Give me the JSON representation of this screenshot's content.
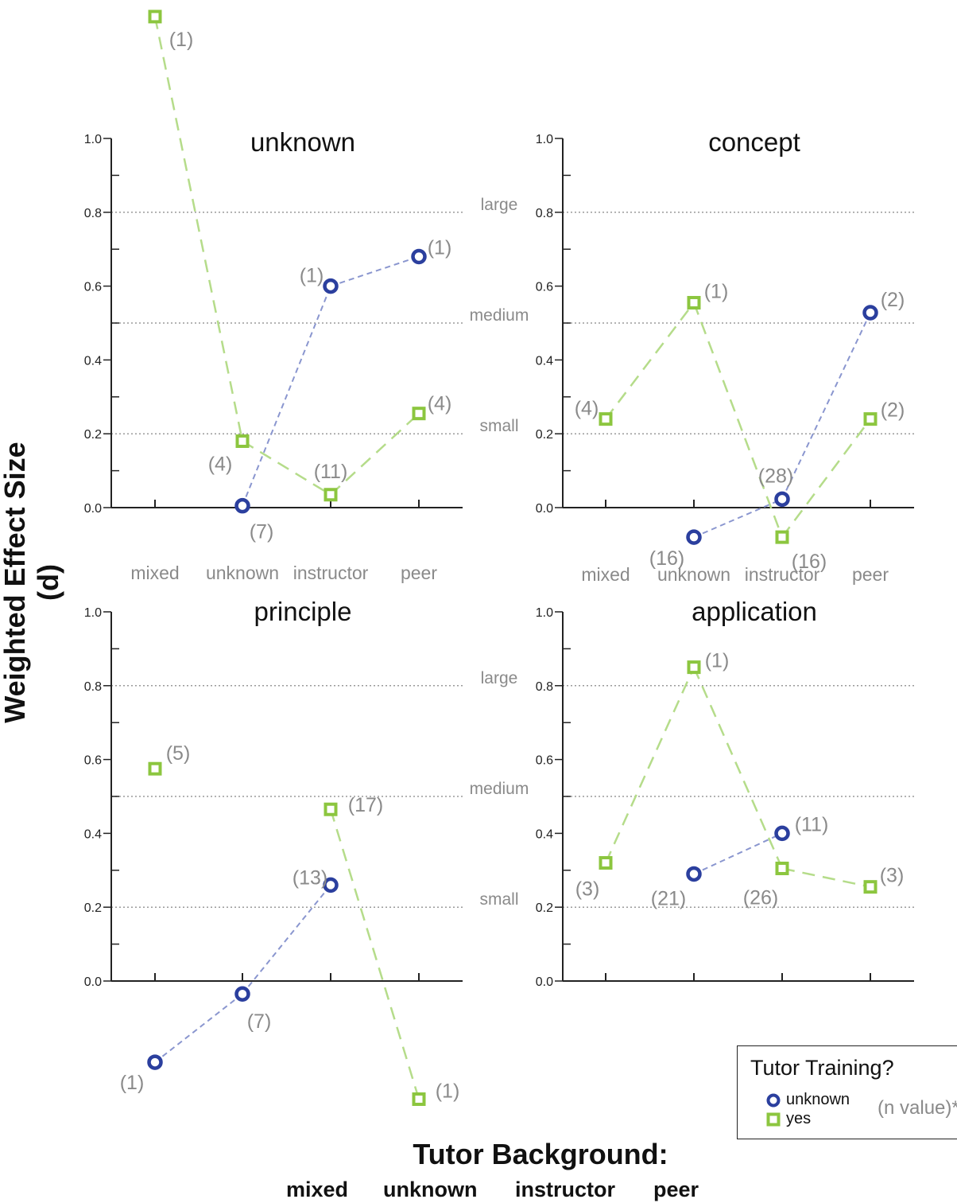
{
  "y_axis_title": "Weighted Effect Size (d)",
  "x_axis_title": "Tutor Background:",
  "x_axis_categories": [
    "mixed",
    "unknown",
    "instructor",
    "peer"
  ],
  "legend": {
    "title": "Tutor Training?",
    "items": [
      {
        "label": "unknown",
        "marker": "circle",
        "color": "#2b3f9e"
      },
      {
        "label": "yes",
        "marker": "square",
        "color": "#8cc63f"
      }
    ],
    "note": "(n value)*"
  },
  "colors": {
    "unknown": "#2b3f9e",
    "yes": "#8cc63f",
    "unknown_line": "#8a96cf",
    "yes_line": "#b5dc8a",
    "nlabel": "#8a8a8a"
  },
  "reference_lines": [
    {
      "label": "large",
      "value": 0.8
    },
    {
      "label": "medium",
      "value": 0.5
    },
    {
      "label": "small",
      "value": 0.2
    }
  ],
  "chart_data": [
    {
      "type": "line",
      "title": "unknown",
      "categories": [
        "mixed",
        "unknown",
        "instructor",
        "peer"
      ],
      "category_labels": [
        "mixed",
        "unknown",
        "instructor",
        "peer"
      ],
      "ylim": [
        0,
        1.0
      ],
      "yticks": [
        "0.0",
        "0.2",
        "0.4",
        "0.6",
        "0.8",
        "1.0"
      ],
      "series": [
        {
          "name": "unknown",
          "values": [
            null,
            0.005,
            0.6,
            0.68
          ],
          "n": [
            null,
            "(7)",
            "(1)",
            "(1)"
          ]
        },
        {
          "name": "yes",
          "values": [
            1.33,
            0.18,
            0.035,
            0.255
          ],
          "n": [
            "(1)",
            "(4)",
            "(11)",
            "(4)"
          ]
        }
      ]
    },
    {
      "type": "line",
      "title": "concept",
      "categories": [
        "mixed",
        "unknown",
        "instructor",
        "peer"
      ],
      "category_labels": [
        "mixed",
        "unknown",
        "instructor",
        "peer"
      ],
      "ylim": [
        0,
        1.0
      ],
      "yticks": [
        "0.0",
        "0.2",
        "0.4",
        "0.6",
        "0.8",
        "1.0"
      ],
      "series": [
        {
          "name": "unknown",
          "values": [
            null,
            -0.08,
            0.023,
            0.528
          ],
          "n": [
            null,
            "(16)",
            "(28)",
            "(2)"
          ]
        },
        {
          "name": "yes",
          "values": [
            0.24,
            0.555,
            -0.08,
            0.24
          ],
          "n": [
            "(4)",
            "(1)",
            "(16)",
            "(2)"
          ]
        }
      ]
    },
    {
      "type": "line",
      "title": "principle",
      "categories": [
        "mixed",
        "unknown",
        "instructor",
        "peer"
      ],
      "category_labels": [],
      "ylim": [
        0,
        1.0
      ],
      "yticks": [
        "0.0",
        "0.2",
        "0.4",
        "0.6",
        "0.8",
        "1.0"
      ],
      "series": [
        {
          "name": "unknown",
          "values": [
            -0.22,
            -0.035,
            0.26,
            null
          ],
          "n": [
            "(1)",
            "(7)",
            "(13)",
            null
          ]
        },
        {
          "name": "yes",
          "values": [
            0.575,
            null,
            0.465,
            -0.32
          ],
          "n": [
            "(5)",
            null,
            "(17)",
            "(1)"
          ]
        }
      ]
    },
    {
      "type": "line",
      "title": "application",
      "categories": [
        "mixed",
        "unknown",
        "instructor",
        "peer"
      ],
      "category_labels": [],
      "ylim": [
        0,
        1.0
      ],
      "yticks": [
        "0.0",
        "0.2",
        "0.4",
        "0.6",
        "0.8",
        "1.0"
      ],
      "series": [
        {
          "name": "unknown",
          "values": [
            null,
            0.29,
            0.4,
            null
          ],
          "n": [
            null,
            "(21)",
            "(11)",
            null
          ]
        },
        {
          "name": "yes",
          "values": [
            0.32,
            0.85,
            0.305,
            0.255
          ],
          "n": [
            "(3)",
            "(1)",
            "(26)",
            "(3)"
          ]
        }
      ]
    }
  ]
}
